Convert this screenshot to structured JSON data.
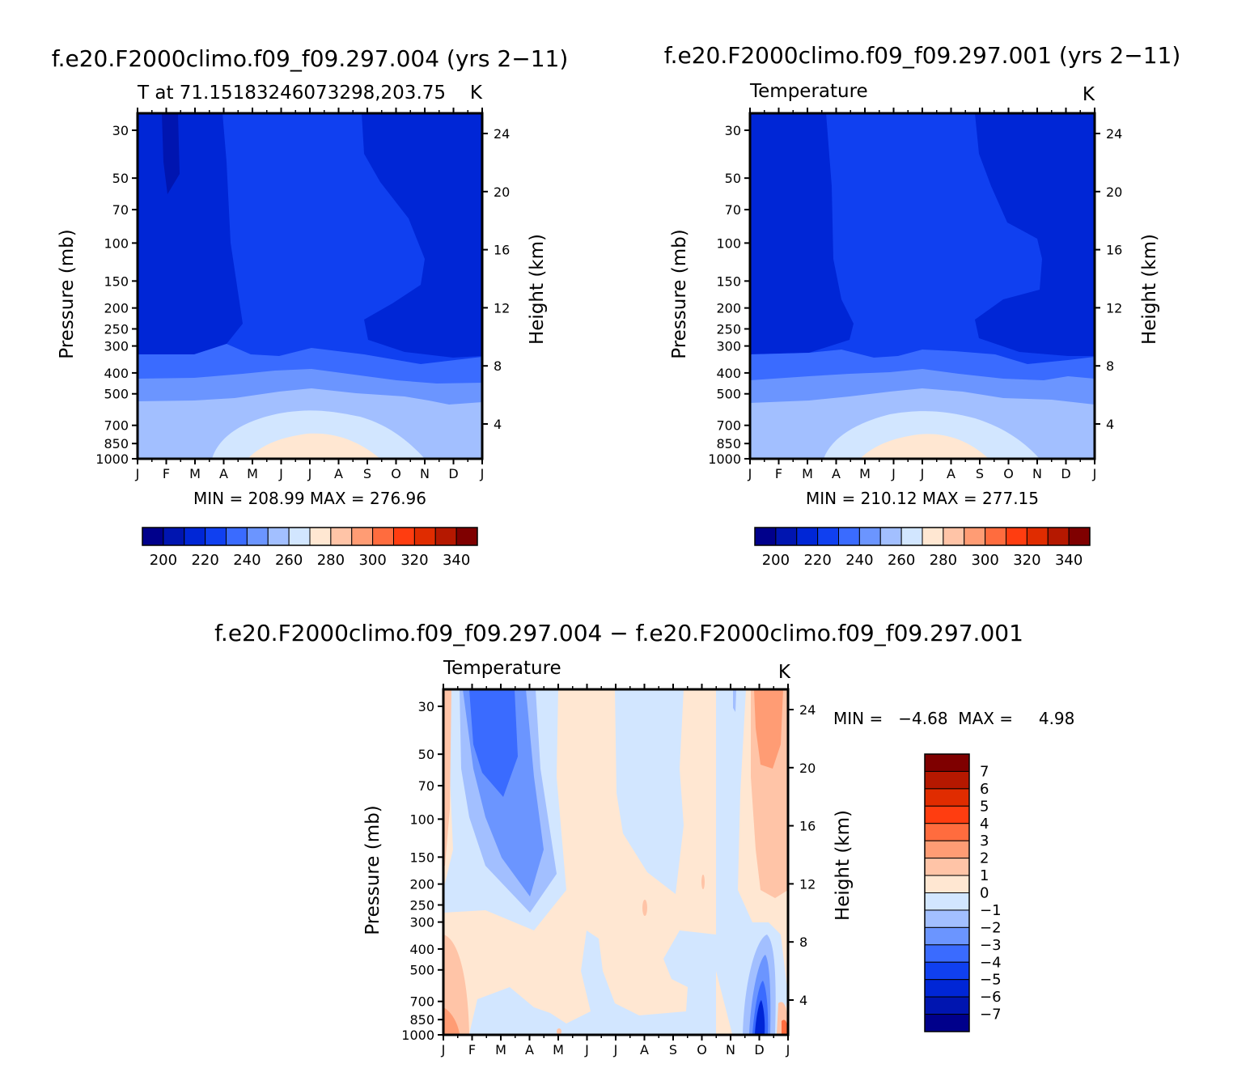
{
  "palettes": {
    "temperature": [
      "#00008b",
      "#0015b0",
      "#0026d6",
      "#1040f0",
      "#3a6bff",
      "#6b95ff",
      "#a2bfff",
      "#d2e6ff",
      "#ffe7d2",
      "#ffc4a7",
      "#ff9c74",
      "#ff6c3e",
      "#ff3d10",
      "#e02c00",
      "#b51800",
      "#7f0000"
    ],
    "difference": [
      "#00008b",
      "#0015b0",
      "#0026d6",
      "#1040f0",
      "#3a6bff",
      "#6b95ff",
      "#a2bfff",
      "#d2e6ff",
      "#ffe7d2",
      "#ffc4a7",
      "#ff9c74",
      "#ff6c3e",
      "#ff3d10",
      "#e02c00",
      "#b51800",
      "#7f0000"
    ]
  },
  "chart_data": [
    {
      "type": "heatmap",
      "id": "case004",
      "title": "f.e20.F2000climo.f09_f09.297.004 (yrs 2−11)",
      "subtitle_left": "T at 71.15183246073298,203.75",
      "subtitle_right": "K",
      "xlabel": "",
      "ylabel": "Pressure (mb)",
      "ylabel_right": "Height (km)",
      "x_ticks": [
        "J",
        "F",
        "M",
        "A",
        "M",
        "J",
        "J",
        "A",
        "S",
        "O",
        "N",
        "D",
        "J"
      ],
      "y_ticks": [
        "30",
        "50",
        "70",
        "100",
        "150",
        "200",
        "250",
        "300",
        "400",
        "500",
        "700",
        "850",
        "1000"
      ],
      "y_ticks_values": [
        30,
        50,
        70,
        100,
        150,
        200,
        250,
        300,
        400,
        500,
        700,
        850,
        1000
      ],
      "right_ticks": [
        "24",
        "20",
        "16",
        "12",
        "8",
        "4"
      ],
      "right_ticks_values": [
        24,
        20,
        16,
        12,
        8,
        4
      ],
      "min_max_text": "MIN = 208.99 MAX = 276.96",
      "min": 208.99,
      "max": 276.96,
      "colorbar_labels": [
        "200",
        "220",
        "240",
        "260",
        "280",
        "300",
        "320",
        "340"
      ],
      "colorbar_levels": [
        200,
        220,
        240,
        260,
        280,
        300,
        320,
        340
      ],
      "grid": false
    },
    {
      "type": "heatmap",
      "id": "case001",
      "title": "f.e20.F2000climo.f09_f09.297.001 (yrs 2−11)",
      "subtitle_left": "Temperature",
      "subtitle_right": "K",
      "xlabel": "",
      "ylabel": "Pressure (mb)",
      "ylabel_right": "Height (km)",
      "x_ticks": [
        "J",
        "F",
        "M",
        "A",
        "M",
        "J",
        "J",
        "A",
        "S",
        "O",
        "N",
        "D",
        "J"
      ],
      "y_ticks": [
        "30",
        "50",
        "70",
        "100",
        "150",
        "200",
        "250",
        "300",
        "400",
        "500",
        "700",
        "850",
        "1000"
      ],
      "y_ticks_values": [
        30,
        50,
        70,
        100,
        150,
        200,
        250,
        300,
        400,
        500,
        700,
        850,
        1000
      ],
      "right_ticks": [
        "24",
        "20",
        "16",
        "12",
        "8",
        "4"
      ],
      "right_ticks_values": [
        24,
        20,
        16,
        12,
        8,
        4
      ],
      "min_max_text": "MIN = 210.12 MAX = 277.15",
      "min": 210.12,
      "max": 277.15,
      "colorbar_labels": [
        "200",
        "220",
        "240",
        "260",
        "280",
        "300",
        "320",
        "340"
      ],
      "colorbar_levels": [
        200,
        220,
        240,
        260,
        280,
        300,
        320,
        340
      ],
      "grid": false
    },
    {
      "type": "heatmap",
      "id": "diff",
      "title": "f.e20.F2000climo.f09_f09.297.004 − f.e20.F2000climo.f09_f09.297.001",
      "subtitle_left": "Temperature",
      "subtitle_right": "K",
      "xlabel": "",
      "ylabel": "Pressure (mb)",
      "ylabel_right": "Height (km)",
      "x_ticks": [
        "J",
        "F",
        "M",
        "A",
        "M",
        "J",
        "J",
        "A",
        "S",
        "O",
        "N",
        "D",
        "J"
      ],
      "y_ticks": [
        "30",
        "50",
        "70",
        "100",
        "150",
        "200",
        "250",
        "300",
        "400",
        "500",
        "700",
        "850",
        "1000"
      ],
      "y_ticks_values": [
        30,
        50,
        70,
        100,
        150,
        200,
        250,
        300,
        400,
        500,
        700,
        850,
        1000
      ],
      "right_ticks": [
        "24",
        "20",
        "16",
        "12",
        "8",
        "4"
      ],
      "right_ticks_values": [
        24,
        20,
        16,
        12,
        8,
        4
      ],
      "min_max_text": "MIN =   −4.68  MAX =     4.98",
      "min": -4.68,
      "max": 4.98,
      "colorbar_labels": [
        "7",
        "6",
        "5",
        "4",
        "3",
        "2",
        "1",
        "0",
        "−1",
        "−2",
        "−3",
        "−4",
        "−5",
        "−6",
        "−7"
      ],
      "colorbar_levels": [
        7,
        6,
        5,
        4,
        3,
        2,
        1,
        0,
        -1,
        -2,
        -3,
        -4,
        -5,
        -6,
        -7
      ],
      "grid": false
    }
  ]
}
